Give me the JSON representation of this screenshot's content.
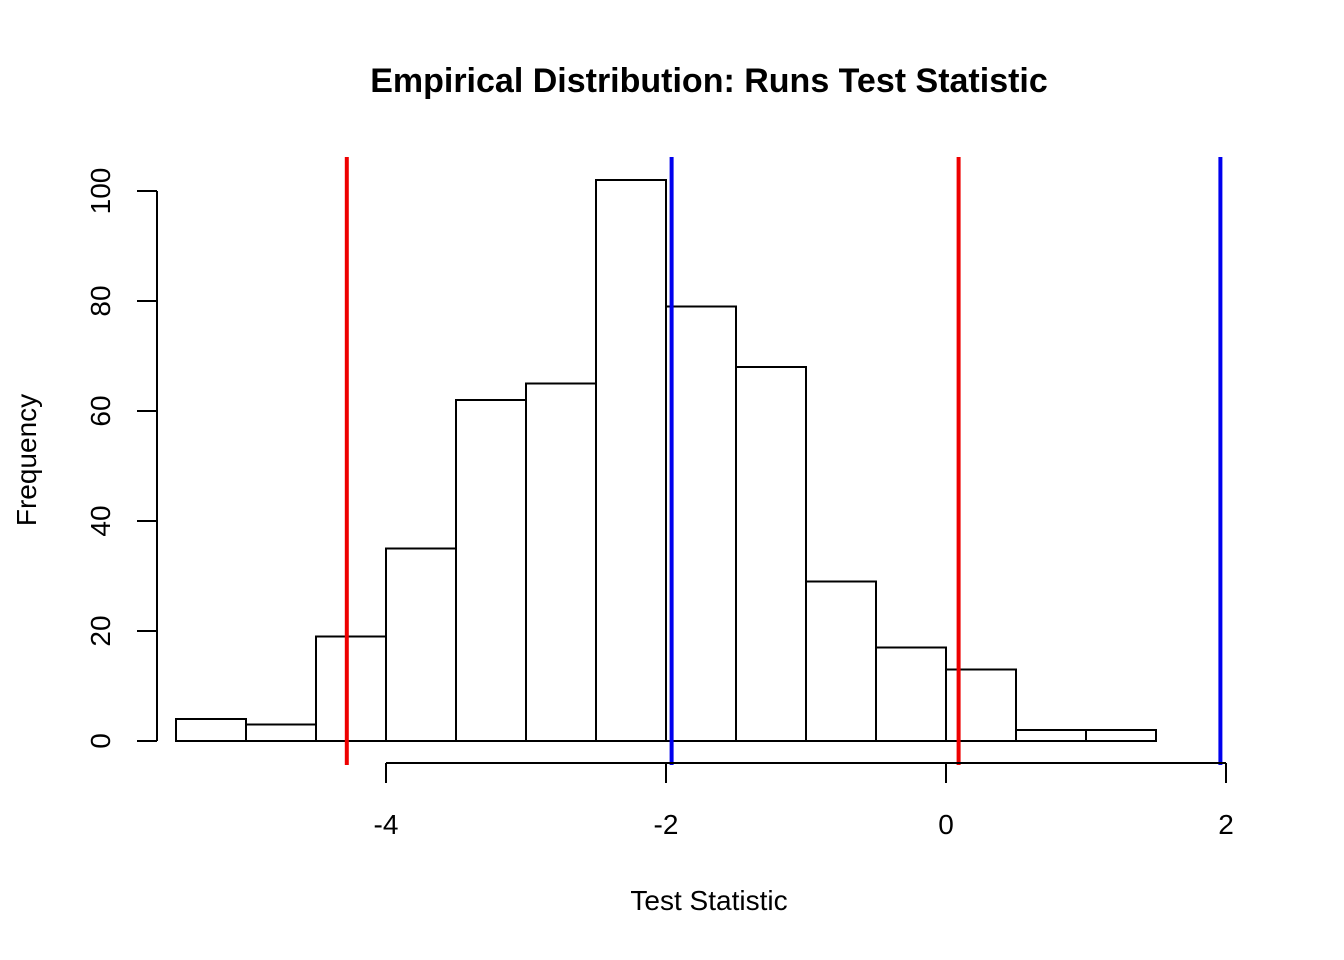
{
  "chart_data": {
    "type": "bar",
    "title": "Empirical Distribution: Runs Test Statistic",
    "xlabel": "Test Statistic",
    "ylabel": "Frequency",
    "xlim": [
      -5.5,
      2.0
    ],
    "ylim": [
      0,
      105
    ],
    "grid": false,
    "legend": "none",
    "bins": [
      {
        "from": -5.5,
        "to": -5.0,
        "count": 4
      },
      {
        "from": -5.0,
        "to": -4.5,
        "count": 3
      },
      {
        "from": -4.5,
        "to": -4.0,
        "count": 19
      },
      {
        "from": -4.0,
        "to": -3.5,
        "count": 35
      },
      {
        "from": -3.5,
        "to": -3.0,
        "count": 62
      },
      {
        "from": -3.0,
        "to": -2.5,
        "count": 65
      },
      {
        "from": -2.5,
        "to": -2.0,
        "count": 102
      },
      {
        "from": -2.0,
        "to": -1.5,
        "count": 79
      },
      {
        "from": -1.5,
        "to": -1.0,
        "count": 68
      },
      {
        "from": -1.0,
        "to": -0.5,
        "count": 29
      },
      {
        "from": -0.5,
        "to": 0.0,
        "count": 17
      },
      {
        "from": 0.0,
        "to": 0.5,
        "count": 13
      },
      {
        "from": 0.5,
        "to": 1.0,
        "count": 2
      },
      {
        "from": 1.0,
        "to": 1.5,
        "count": 2
      }
    ],
    "x_ticks": [
      -4,
      -2,
      0,
      2
    ],
    "x_tick_labels": [
      "-4",
      "-2",
      "0",
      "2"
    ],
    "y_ticks": [
      0,
      20,
      40,
      60,
      80,
      100
    ],
    "y_tick_labels": [
      "0",
      "20",
      "40",
      "60",
      "80",
      "100"
    ],
    "vlines": [
      {
        "x": -4.28,
        "color": "#ee0000"
      },
      {
        "x": 0.09,
        "color": "#ee0000"
      },
      {
        "x": -1.96,
        "color": "#0000ee"
      },
      {
        "x": 1.96,
        "color": "#0000ee"
      }
    ]
  }
}
